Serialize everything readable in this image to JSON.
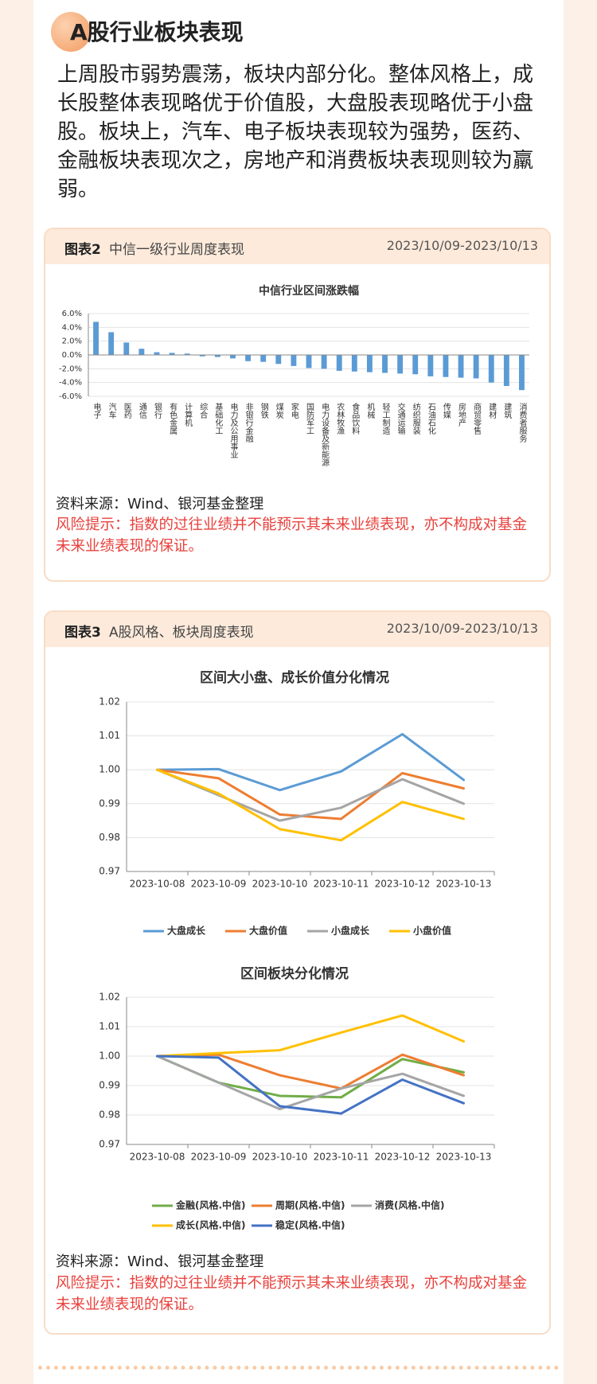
{
  "section_title": "A股行业板块表现",
  "intro": "上周股市弱势震荡，板块内部分化。整体风格上，成长股整体表现略优于价值股，大盘股表现略优于小盘股。板块上，汽车、电子板块表现较为强势，医药、金融板块表现次之，房地产和消费板块表现则较为羸弱。",
  "panels": [
    {
      "label": "图表2",
      "title": "中信一级行业周度表现",
      "date_range": "2023/10/09-2023/10/13",
      "source": "资料来源：Wind、银河基金整理",
      "risk": "风险提示：指数的过往业绩并不能预示其未来业绩表现，亦不构成对基金未来业绩表现的保证。"
    },
    {
      "label": "图表3",
      "title": "A股风格、板块周度表现",
      "date_range": "2023/10/09-2023/10/13",
      "source": "资料来源：Wind、银河基金整理",
      "risk": "风险提示：指数的过往业绩并不能预示其未来业绩表现，亦不构成对基金未来业绩表现的保证。"
    }
  ],
  "chart_data": [
    {
      "type": "bar",
      "title": "中信行业区间涨跌幅",
      "color": "#5b9bd5",
      "grid": true,
      "categories": [
        "电子",
        "汽车",
        "医药",
        "通信",
        "银行",
        "有色金属",
        "计算机",
        "综合",
        "基础化工",
        "电力及公用事业",
        "非银行金融",
        "钢铁",
        "煤炭",
        "家电",
        "国防军工",
        "电力设备及新能源",
        "农林牧渔",
        "食品饮料",
        "机械",
        "轻工制造",
        "交通运输",
        "纺织服装",
        "石油石化",
        "传媒",
        "房地产",
        "商贸零售",
        "建材",
        "建筑",
        "消费者服务"
      ],
      "values": [
        4.8,
        3.3,
        1.8,
        0.9,
        0.4,
        0.3,
        0.2,
        -0.2,
        -0.3,
        -0.5,
        -0.9,
        -1.0,
        -1.3,
        -1.6,
        -1.9,
        -2.0,
        -2.3,
        -2.4,
        -2.5,
        -2.6,
        -2.7,
        -2.8,
        -3.1,
        -3.2,
        -3.3,
        -3.4,
        -4.0,
        -4.5,
        -5.1
      ],
      "ylim": [
        -6,
        6
      ],
      "yticks": [
        {
          "value": 6,
          "label": "6.0%"
        },
        {
          "value": 4,
          "label": "4.0%"
        },
        {
          "value": 2,
          "label": "2.0%"
        },
        {
          "value": 0,
          "label": "0.0%"
        },
        {
          "value": -2,
          "label": "-2.0%"
        },
        {
          "value": -4,
          "label": "-4.0%"
        },
        {
          "value": -6,
          "label": "-6.0%"
        }
      ]
    },
    {
      "type": "line",
      "title": "区间大小盘、成长价值分化情况",
      "grid": true,
      "categories": [
        "2023-10-08",
        "2023-10-09",
        "2023-10-10",
        "2023-10-11",
        "2023-10-12",
        "2023-10-13"
      ],
      "ylim": [
        0.97,
        1.02
      ],
      "yticks": [
        0.97,
        0.98,
        0.99,
        {
          "value": 1,
          "label": "1.00"
        },
        1.01,
        1.02
      ],
      "series": [
        {
          "name": "大盘成长",
          "color": "#5b9bd5",
          "values": [
            1.0,
            1.0002,
            0.994,
            0.9995,
            1.0105,
            0.997
          ]
        },
        {
          "name": "大盘价值",
          "color": "#ed7d31",
          "values": [
            1.0,
            0.9975,
            0.9868,
            0.9855,
            0.999,
            0.9945
          ]
        },
        {
          "name": "小盘成长",
          "color": "#a5a5a5",
          "values": [
            1.0,
            0.9925,
            0.985,
            0.9888,
            0.9972,
            0.99
          ]
        },
        {
          "name": "小盘价值",
          "color": "#ffc000",
          "values": [
            1.0,
            0.993,
            0.9825,
            0.9792,
            0.9905,
            0.9855
          ]
        }
      ]
    },
    {
      "type": "line",
      "title": "区间板块分化情况",
      "grid": true,
      "categories": [
        "2023-10-08",
        "2023-10-09",
        "2023-10-10",
        "2023-10-11",
        "2023-10-12",
        "2023-10-13"
      ],
      "ylim": [
        0.97,
        1.02
      ],
      "yticks": [
        0.97,
        0.98,
        0.99,
        {
          "value": 1,
          "label": "1.00"
        },
        1.01,
        1.02
      ],
      "series": [
        {
          "name": "金融(风格.中信)",
          "color": "#70ad47",
          "values": [
            1.0,
            0.991,
            0.9865,
            0.986,
            0.999,
            0.9945
          ]
        },
        {
          "name": "周期(风格.中信)",
          "color": "#ed7d31",
          "values": [
            1.0,
            1.0005,
            0.9935,
            0.989,
            1.0005,
            0.9935
          ]
        },
        {
          "name": "消费(风格.中信)",
          "color": "#a5a5a5",
          "values": [
            1.0,
            0.991,
            0.982,
            0.989,
            0.994,
            0.9865
          ]
        },
        {
          "name": "成长(风格.中信)",
          "color": "#ffc000",
          "values": [
            1.0,
            1.001,
            1.002,
            1.008,
            1.0138,
            1.005
          ]
        },
        {
          "name": "稳定(风格.中信)",
          "color": "#4472c4",
          "values": [
            1.0,
            0.9995,
            0.983,
            0.9805,
            0.992,
            0.984
          ]
        }
      ]
    }
  ]
}
